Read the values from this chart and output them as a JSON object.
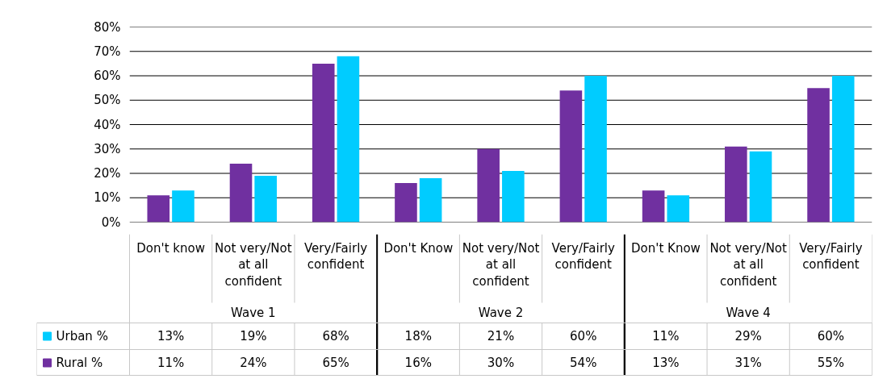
{
  "chart_data": {
    "type": "bar",
    "categories": [
      "Don't know",
      "Not very/Not at all confident",
      "Very/Fairly confident",
      "Don't Know",
      "Not very/Not at all confident",
      "Very/Fairly confident",
      "Don't Know",
      "Not very/Not at all confident",
      "Very/Fairly confident"
    ],
    "annotations": [
      "Wave 1",
      "Wave 2",
      "Wave 4"
    ],
    "series": [
      {
        "name": "Rural %",
        "color": "#7030a0",
        "values": [
          11,
          24,
          65,
          16,
          30,
          54,
          13,
          31,
          55
        ],
        "value_labels": [
          "11%",
          "24%",
          "65%",
          "16%",
          "30%",
          "54%",
          "13%",
          "31%",
          "55%"
        ]
      },
      {
        "name": "Urban %",
        "color": "#00ccff",
        "values": [
          13,
          19,
          68,
          18,
          21,
          60,
          11,
          29,
          60
        ],
        "value_labels": [
          "13%",
          "19%",
          "68%",
          "18%",
          "21%",
          "60%",
          "11%",
          "29%",
          "60%"
        ]
      }
    ],
    "ylim": [
      0,
      80
    ],
    "yticks": [
      {
        "value": 0,
        "label": "0%"
      },
      {
        "value": 10,
        "label": "10%"
      },
      {
        "value": 20,
        "label": "20%"
      },
      {
        "value": 30,
        "label": "30%"
      },
      {
        "value": 40,
        "label": "40%"
      },
      {
        "value": 50,
        "label": "50%"
      },
      {
        "value": 60,
        "label": "60%"
      },
      {
        "value": 70,
        "label": "70%"
      },
      {
        "value": 80,
        "label": "80%"
      }
    ],
    "grid": "y",
    "legend": "bottom"
  }
}
